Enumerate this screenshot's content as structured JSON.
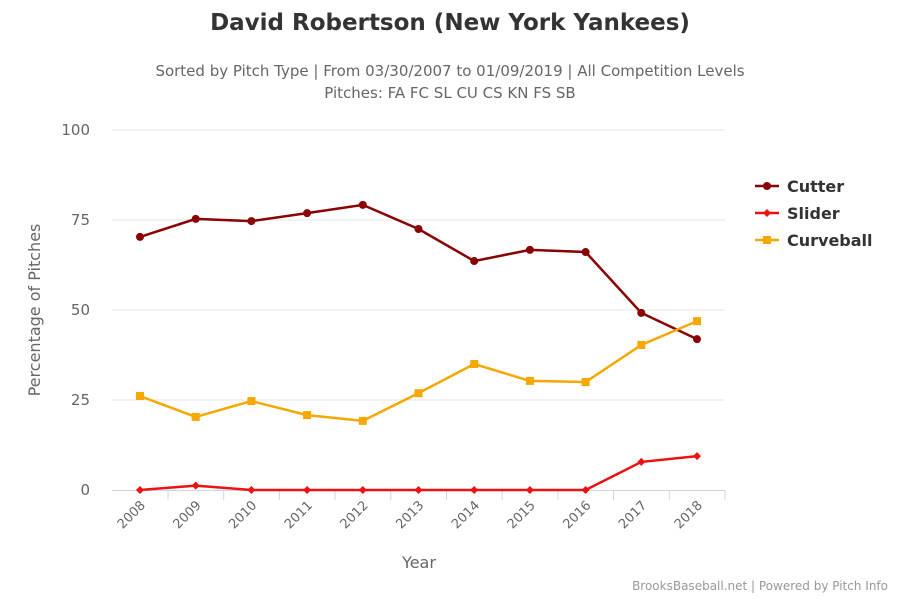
{
  "chart_data": {
    "type": "line",
    "title": "David Robertson (New York Yankees)",
    "subtitle": "Sorted by Pitch Type | From 03/30/2007 to 01/09/2019 | All Competition Levels",
    "subtitle2": "Pitches: FA FC SL CU CS KN FS SB",
    "xlabel": "Year",
    "ylabel": "Percentage of Pitches",
    "ylim": [
      0,
      100
    ],
    "yticks": [
      0,
      25,
      50,
      75,
      100
    ],
    "categories": [
      "2008",
      "2009",
      "2010",
      "2011",
      "2012",
      "2013",
      "2014",
      "2015",
      "2016",
      "2017",
      "2018"
    ],
    "legend_position": "right",
    "grid": true,
    "series": [
      {
        "name": "Cutter",
        "color": "#8b0000",
        "marker": "circle",
        "values": [
          70.3,
          75.3,
          74.7,
          76.9,
          79.2,
          72.5,
          63.6,
          66.7,
          66.1,
          49.2,
          41.9
        ]
      },
      {
        "name": "Slider",
        "color": "#ee1111",
        "marker": "diamond",
        "values": [
          0,
          1.2,
          0,
          0,
          0,
          0,
          0,
          0,
          0,
          7.8,
          9.4
        ]
      },
      {
        "name": "Curveball",
        "color": "#f5a800",
        "marker": "square",
        "values": [
          26.1,
          20.3,
          24.7,
          20.8,
          19.2,
          26.9,
          35.0,
          30.3,
          30.0,
          40.3,
          46.9
        ]
      }
    ]
  },
  "credit": "BrooksBaseball.net | Powered by Pitch Info"
}
